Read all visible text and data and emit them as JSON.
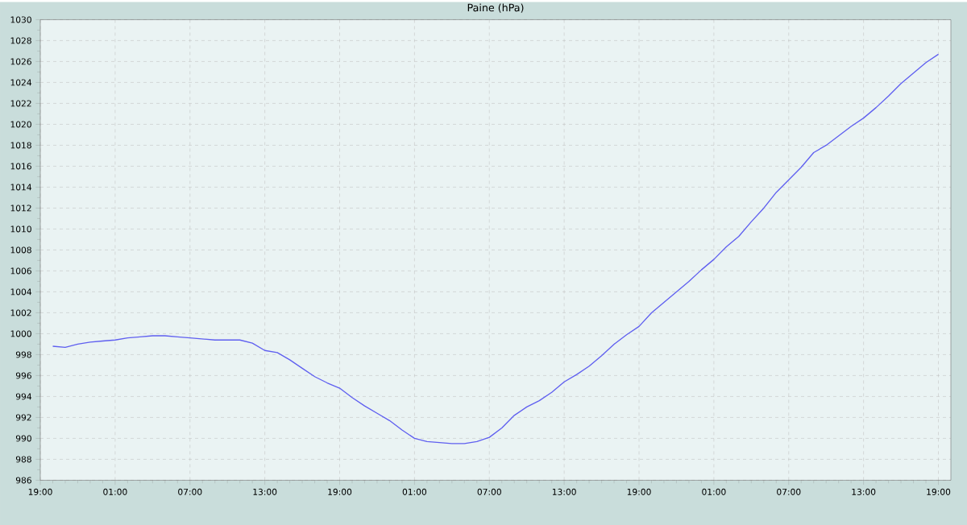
{
  "chart_data": {
    "type": "line",
    "title": "Paine (hPa)",
    "color": "#5f5ff0",
    "grid": true,
    "categories": [
      "19:00",
      null,
      null,
      null,
      null,
      null,
      "01:00",
      null,
      null,
      null,
      null,
      null,
      "07:00",
      null,
      null,
      null,
      null,
      null,
      "13:00",
      null,
      null,
      null,
      null,
      null,
      "19:00",
      null,
      null,
      null,
      null,
      null,
      "01:00",
      null,
      null,
      null,
      null,
      null,
      "07:00",
      null,
      null,
      null,
      null,
      null,
      "13:00",
      null,
      null,
      null,
      null,
      null,
      "19:00",
      null,
      null,
      null,
      null,
      null,
      "01:00",
      null,
      null,
      null,
      null,
      null,
      "07:00",
      null,
      null,
      null,
      null,
      null,
      "13:00",
      null,
      null,
      null,
      null,
      null,
      "19:00",
      null
    ],
    "values": [
      null,
      998.8,
      998.7,
      999.0,
      999.2,
      999.3,
      999.4,
      999.6,
      999.7,
      999.8,
      999.8,
      999.7,
      999.6,
      999.5,
      999.4,
      999.4,
      999.4,
      999.1,
      998.4,
      998.2,
      997.5,
      996.7,
      995.9,
      995.3,
      994.8,
      993.9,
      993.1,
      992.4,
      991.7,
      990.8,
      990.0,
      989.7,
      989.6,
      989.5,
      989.5,
      989.7,
      990.1,
      991.0,
      992.2,
      993.0,
      993.6,
      994.4,
      995.4,
      996.1,
      996.9,
      997.9,
      999.0,
      999.9,
      1000.7,
      1002.0,
      1003.0,
      1004.0,
      1005.0,
      1006.1,
      1007.1,
      1008.3,
      1009.3,
      1010.7,
      1012.0,
      1013.5,
      1014.7,
      1015.9,
      1017.3,
      1018.0,
      1018.9,
      1019.8,
      1020.6,
      1021.6,
      1022.7,
      1023.9,
      1024.9,
      1025.9,
      1026.7,
      null
    ],
    "ylim": [
      986,
      1030
    ],
    "yticks": [
      986,
      988,
      990,
      992,
      994,
      996,
      998,
      1000,
      1002,
      1004,
      1006,
      1008,
      1010,
      1012,
      1014,
      1016,
      1018,
      1020,
      1022,
      1024,
      1026,
      1028,
      1030
    ]
  }
}
